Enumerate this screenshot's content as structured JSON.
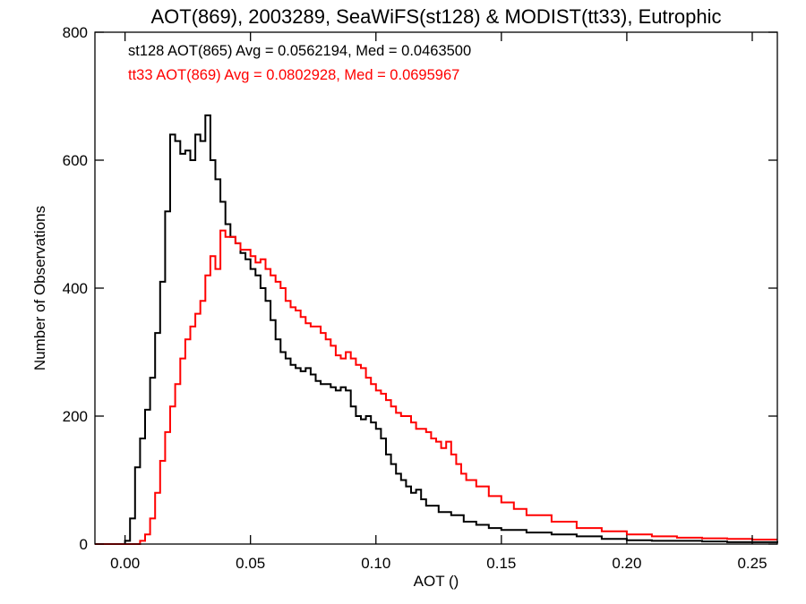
{
  "chart_data": {
    "type": "line",
    "title": "AOT(869), 2003289, SeaWiFS(st128) & MODIST(tt33), Eutrophic",
    "xlabel": "AOT ()",
    "ylabel": "Number of Observations",
    "xlim": [
      -0.012,
      0.26
    ],
    "ylim": [
      0,
      800
    ],
    "xticks": [
      0.0,
      0.05,
      0.1,
      0.15,
      0.2,
      0.25
    ],
    "xtick_labels": [
      "0.00",
      "0.05",
      "0.10",
      "0.15",
      "0.20",
      "0.25"
    ],
    "yticks": [
      0,
      200,
      400,
      600,
      800
    ],
    "ytick_labels": [
      "0",
      "200",
      "400",
      "600",
      "800"
    ],
    "grid": false,
    "legend_position": "top-left",
    "annotations": [
      {
        "text": "st128 AOT(865) Avg = 0.0562194, Med = 0.0463500",
        "color": "#000000"
      },
      {
        "text": "tt33 AOT(869) Avg = 0.0802928, Med = 0.0695967",
        "color": "#ff0000"
      }
    ],
    "series": [
      {
        "name": "st128",
        "color": "#000000",
        "x": [
          -0.012,
          0.0,
          0.002,
          0.004,
          0.006,
          0.008,
          0.01,
          0.012,
          0.014,
          0.016,
          0.018,
          0.02,
          0.022,
          0.024,
          0.026,
          0.028,
          0.03,
          0.032,
          0.034,
          0.036,
          0.038,
          0.04,
          0.042,
          0.044,
          0.046,
          0.048,
          0.05,
          0.052,
          0.054,
          0.056,
          0.058,
          0.06,
          0.062,
          0.064,
          0.066,
          0.068,
          0.07,
          0.072,
          0.074,
          0.076,
          0.078,
          0.08,
          0.082,
          0.084,
          0.086,
          0.088,
          0.09,
          0.092,
          0.094,
          0.096,
          0.098,
          0.1,
          0.102,
          0.104,
          0.106,
          0.108,
          0.11,
          0.112,
          0.114,
          0.116,
          0.118,
          0.12,
          0.125,
          0.13,
          0.135,
          0.14,
          0.145,
          0.15,
          0.16,
          0.17,
          0.18,
          0.19,
          0.2,
          0.21,
          0.22,
          0.23,
          0.24,
          0.25,
          0.26
        ],
        "values": [
          0,
          5,
          40,
          120,
          165,
          210,
          260,
          330,
          410,
          520,
          640,
          630,
          610,
          615,
          600,
          640,
          630,
          670,
          600,
          570,
          535,
          500,
          480,
          470,
          455,
          445,
          430,
          420,
          400,
          380,
          350,
          320,
          300,
          290,
          280,
          275,
          270,
          275,
          265,
          255,
          250,
          250,
          245,
          240,
          245,
          240,
          215,
          200,
          195,
          200,
          190,
          180,
          165,
          140,
          125,
          110,
          100,
          90,
          80,
          85,
          70,
          60,
          50,
          45,
          35,
          30,
          25,
          22,
          18,
          15,
          12,
          8,
          6,
          5,
          5,
          4,
          3,
          3,
          2
        ]
      },
      {
        "name": "tt33",
        "color": "#ff0000",
        "x": [
          -0.012,
          0.0,
          0.004,
          0.006,
          0.008,
          0.01,
          0.012,
          0.014,
          0.016,
          0.018,
          0.02,
          0.022,
          0.024,
          0.026,
          0.028,
          0.03,
          0.032,
          0.034,
          0.036,
          0.038,
          0.04,
          0.042,
          0.044,
          0.046,
          0.048,
          0.05,
          0.052,
          0.054,
          0.056,
          0.058,
          0.06,
          0.062,
          0.064,
          0.066,
          0.068,
          0.07,
          0.072,
          0.074,
          0.076,
          0.078,
          0.08,
          0.082,
          0.084,
          0.086,
          0.088,
          0.09,
          0.092,
          0.094,
          0.096,
          0.098,
          0.1,
          0.102,
          0.104,
          0.106,
          0.108,
          0.11,
          0.112,
          0.114,
          0.116,
          0.118,
          0.12,
          0.122,
          0.124,
          0.126,
          0.128,
          0.13,
          0.132,
          0.134,
          0.136,
          0.14,
          0.145,
          0.15,
          0.155,
          0.16,
          0.17,
          0.18,
          0.19,
          0.2,
          0.21,
          0.22,
          0.23,
          0.24,
          0.25,
          0.26
        ],
        "values": [
          0,
          0,
          0,
          5,
          15,
          40,
          80,
          130,
          175,
          215,
          250,
          290,
          320,
          340,
          360,
          380,
          420,
          450,
          430,
          490,
          480,
          480,
          470,
          460,
          460,
          450,
          440,
          445,
          430,
          420,
          410,
          400,
          380,
          370,
          365,
          355,
          345,
          340,
          340,
          330,
          320,
          310,
          295,
          290,
          300,
          290,
          280,
          275,
          260,
          250,
          240,
          235,
          225,
          215,
          205,
          200,
          200,
          190,
          180,
          180,
          175,
          165,
          160,
          150,
          160,
          140,
          125,
          110,
          100,
          90,
          75,
          65,
          55,
          45,
          35,
          25,
          20,
          15,
          12,
          10,
          9,
          8,
          7,
          7
        ]
      }
    ]
  }
}
